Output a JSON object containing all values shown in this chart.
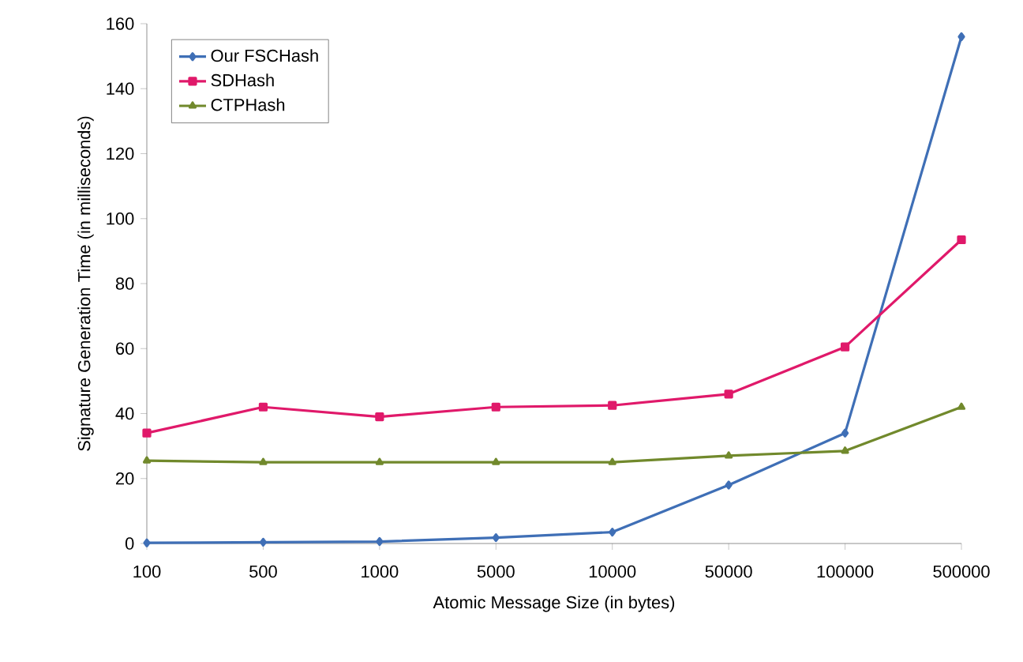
{
  "chart_data": {
    "type": "line",
    "xlabel": "Atomic Message Size (in bytes)",
    "ylabel": "Signature Generation Time (in milliseconds)",
    "categories": [
      "100",
      "500",
      "1000",
      "5000",
      "10000",
      "50000",
      "100000",
      "500000"
    ],
    "ylim": [
      0,
      160
    ],
    "yticks": [
      0,
      20,
      40,
      60,
      80,
      100,
      120,
      140,
      160
    ],
    "grid": false,
    "legend": "top left",
    "line_style": "solid",
    "series": [
      {
        "name": "Our FSCHash",
        "color": "#3f6fb6",
        "marker": "diamond",
        "values": [
          0.2,
          0.4,
          0.6,
          1.8,
          3.5,
          18,
          34,
          156
        ]
      },
      {
        "name": "SDHash",
        "color": "#e0196a",
        "marker": "square",
        "values": [
          34,
          42,
          39,
          42,
          42.5,
          46,
          60.5,
          93.5
        ]
      },
      {
        "name": "CTPHash",
        "color": "#71892c",
        "marker": "triangle",
        "values": [
          25.5,
          25,
          25,
          25,
          25,
          27,
          28.5,
          42
        ]
      }
    ]
  }
}
